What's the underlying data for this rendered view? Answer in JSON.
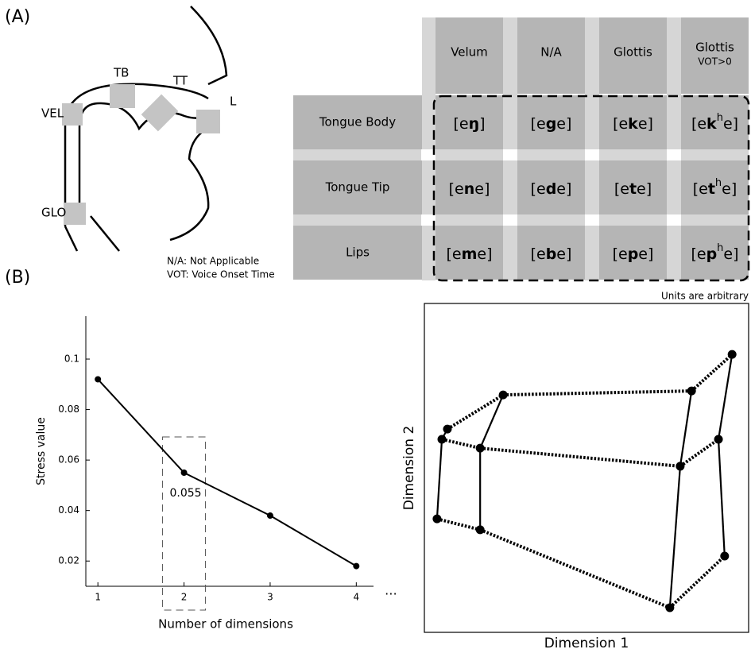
{
  "panel_labels": [
    "(A)",
    "(B)"
  ],
  "diagram": {
    "labels": [
      "VEL",
      "TB",
      "TT",
      "L",
      "GLO"
    ],
    "notes": [
      "N/A: Not Applicable",
      "VOT: Voice Onset Time"
    ]
  },
  "table": {
    "columns": [
      {
        "name": "Velum"
      },
      {
        "name": "N/A"
      },
      {
        "name": "Glottis"
      },
      {
        "name": "Glottis",
        "sub": "VOT>0"
      }
    ],
    "rows": [
      {
        "name": "Tongue Body",
        "cells": [
          [
            {
              "text": "[e"
            },
            {
              "text": "ŋ",
              "bold": true
            },
            {
              "text": "]"
            }
          ],
          [
            {
              "text": "[e"
            },
            {
              "text": "g",
              "bold": true
            },
            {
              "text": "e]"
            }
          ],
          [
            {
              "text": "[e"
            },
            {
              "text": "k",
              "bold": true
            },
            {
              "text": "e]"
            }
          ],
          [
            {
              "text": "[e"
            },
            {
              "text": "k",
              "bold": true
            },
            {
              "text": "h",
              "sup": true
            },
            {
              "text": "e]"
            }
          ]
        ]
      },
      {
        "name": "Tongue Tip",
        "cells": [
          [
            {
              "text": "[e"
            },
            {
              "text": "n",
              "bold": true
            },
            {
              "text": "e]"
            }
          ],
          [
            {
              "text": "[e"
            },
            {
              "text": "d",
              "bold": true
            },
            {
              "text": "e]"
            }
          ],
          [
            {
              "text": "[e"
            },
            {
              "text": "t",
              "bold": true
            },
            {
              "text": "e]"
            }
          ],
          [
            {
              "text": "[e"
            },
            {
              "text": "t",
              "bold": true
            },
            {
              "text": "h",
              "sup": true
            },
            {
              "text": "e]"
            }
          ]
        ]
      },
      {
        "name": "Lips",
        "cells": [
          [
            {
              "text": "[e"
            },
            {
              "text": "m",
              "bold": true
            },
            {
              "text": "e]"
            }
          ],
          [
            {
              "text": "[e"
            },
            {
              "text": "b",
              "bold": true
            },
            {
              "text": "e]"
            }
          ],
          [
            {
              "text": "[e"
            },
            {
              "text": "p",
              "bold": true
            },
            {
              "text": "e]"
            }
          ],
          [
            {
              "text": "[e"
            },
            {
              "text": "p",
              "bold": true
            },
            {
              "text": "h",
              "sup": true
            },
            {
              "text": "e]"
            }
          ]
        ]
      }
    ]
  },
  "chart_data": [
    {
      "type": "line",
      "x_label": "Number of dimensions",
      "y_label": "Stress value",
      "x": [
        1,
        2,
        3,
        4
      ],
      "values": [
        0.092,
        0.055,
        0.038,
        0.018
      ],
      "value_labels": [
        null,
        "0.055",
        null,
        null
      ],
      "color": "#000000",
      "xlim": [
        0.86,
        4.2
      ],
      "ylim": [
        0.01,
        0.117
      ],
      "xticks": [
        1,
        2,
        3,
        4
      ],
      "yticks": [
        0.02,
        0.04,
        0.06,
        0.08,
        0.1
      ],
      "x_continuation": "⋯"
    },
    {
      "type": "scatter",
      "title": "Units are arbitrary",
      "x_label": "Dimension 1",
      "y_label": "Dimension 2",
      "x": [
        7.1,
        24.3,
        82.4,
        94.9,
        5.4,
        17.2,
        78.9,
        90.7,
        3.9,
        17.2,
        75.7,
        92.6
      ],
      "values": [
        61.8,
        72.2,
        73.4,
        84.5,
        58.7,
        56.0,
        50.5,
        58.7,
        34.5,
        31.2,
        7.5,
        23.2
      ],
      "color": "#000000",
      "xlim": [
        0,
        100
      ],
      "ylim": [
        0,
        100
      ],
      "edges": [
        {
          "from": 1,
          "to": 5,
          "style": "solid"
        },
        {
          "from": 2,
          "to": 6,
          "style": "solid"
        },
        {
          "from": 6,
          "to": 10,
          "style": "solid"
        },
        {
          "from": 3,
          "to": 7,
          "style": "solid"
        },
        {
          "from": 7,
          "to": 11,
          "style": "solid"
        },
        {
          "from": 0,
          "to": 4,
          "style": "solid"
        },
        {
          "from": 4,
          "to": 8,
          "style": "solid"
        },
        {
          "from": 5,
          "to": 9,
          "style": "solid"
        },
        {
          "from": 0,
          "to": 1,
          "style": "dotted"
        },
        {
          "from": 1,
          "to": 2,
          "style": "dotted"
        },
        {
          "from": 2,
          "to": 3,
          "style": "dotted"
        },
        {
          "from": 4,
          "to": 5,
          "style": "dotted"
        },
        {
          "from": 5,
          "to": 6,
          "style": "dotted"
        },
        {
          "from": 6,
          "to": 7,
          "style": "dotted"
        },
        {
          "from": 8,
          "to": 9,
          "style": "dotted"
        },
        {
          "from": 9,
          "to": 10,
          "style": "dotted"
        },
        {
          "from": 10,
          "to": 11,
          "style": "dotted"
        }
      ]
    }
  ]
}
